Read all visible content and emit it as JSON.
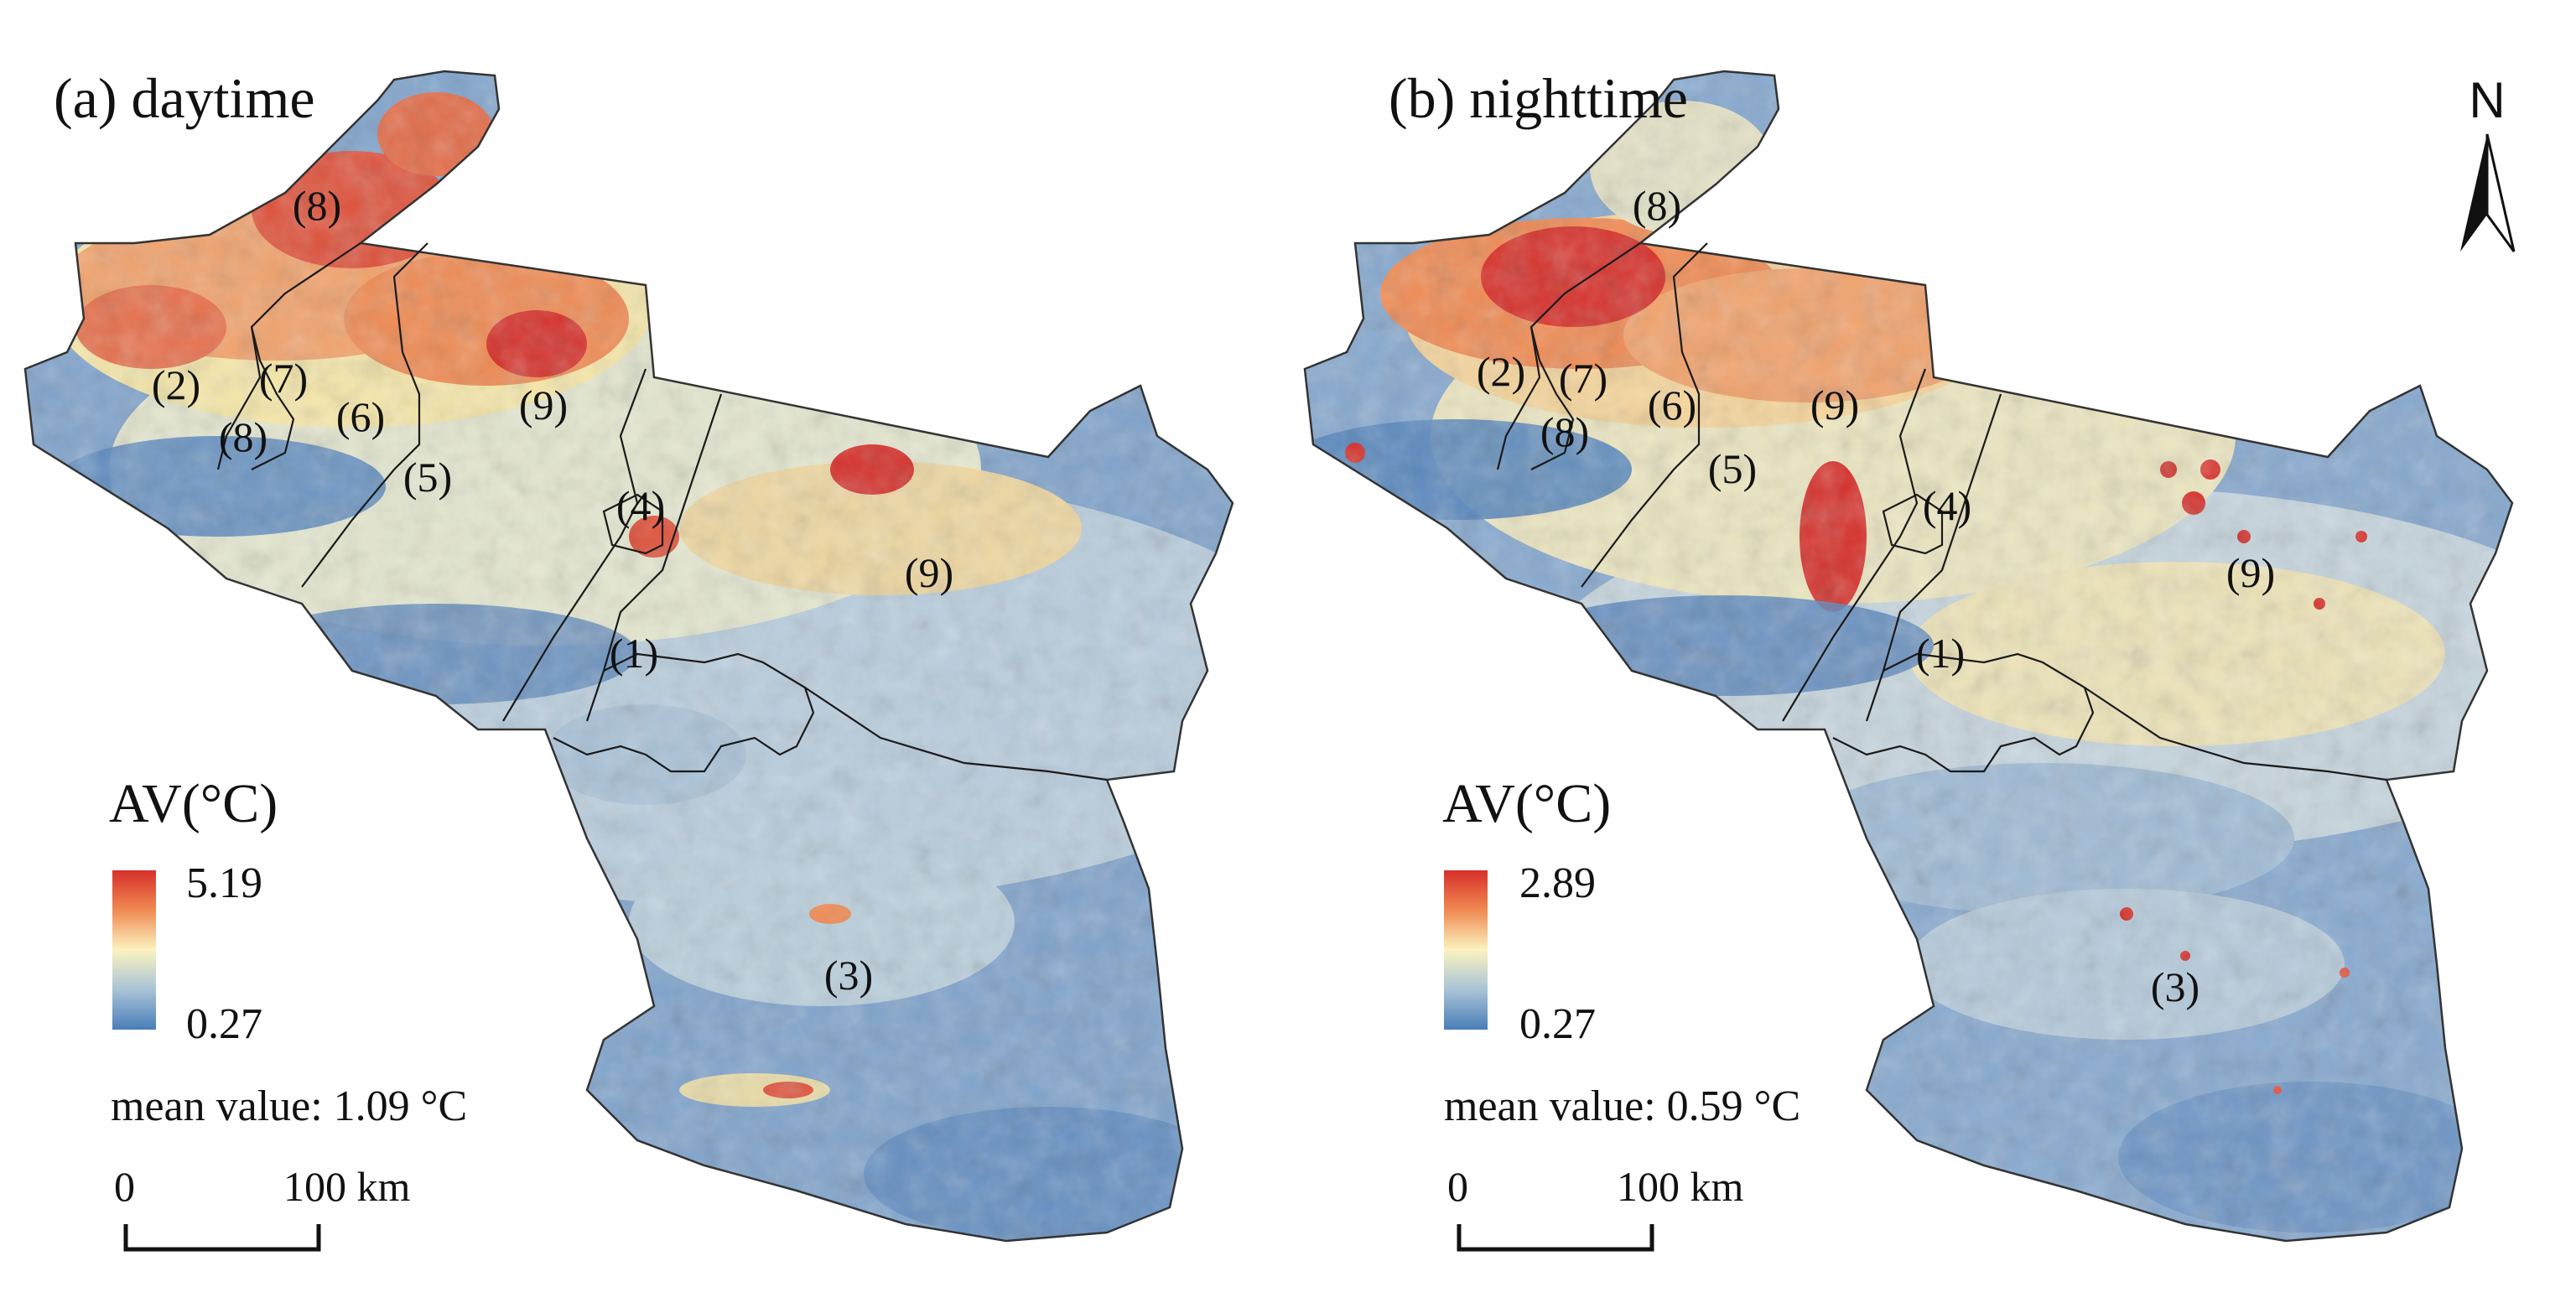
{
  "panels": [
    {
      "title": "(a) daytime",
      "legend": {
        "title": "AV(°C)",
        "max": "5.19",
        "min": "0.27"
      },
      "mean_text": "mean value: 1.09 °C",
      "scale": {
        "zero": "0",
        "end": "100 km"
      },
      "region_labels": {
        "r1": "(1)",
        "r2": "(2)",
        "r3": "(3)",
        "r4": "(4)",
        "r5": "(5)",
        "r6": "(6)",
        "r7": "(7)",
        "r8a": "(8)",
        "r8b": "(8)",
        "r9a": "(9)",
        "r9b": "(9)"
      }
    },
    {
      "title": "(b) nighttime",
      "legend": {
        "title": "AV(°C)",
        "max": "2.89",
        "min": "0.27"
      },
      "mean_text": "mean value: 0.59 °C",
      "scale": {
        "zero": "0",
        "end": "100 km"
      },
      "region_labels": {
        "r1": "(1)",
        "r2": "(2)",
        "r3": "(3)",
        "r4": "(4)",
        "r5": "(5)",
        "r6": "(6)",
        "r7": "(7)",
        "r8a": "(8)",
        "r8b": "(8)",
        "r9a": "(9)",
        "r9b": "(9)"
      }
    }
  ],
  "north_arrow": {
    "label": "N"
  },
  "colors": {
    "hot": "#d7302a",
    "warm": "#f08a52",
    "mid": "#fbf3c0",
    "cool": "#a8c3d6",
    "cold": "#4a7db8",
    "boundary": "#1a1a1a"
  }
}
